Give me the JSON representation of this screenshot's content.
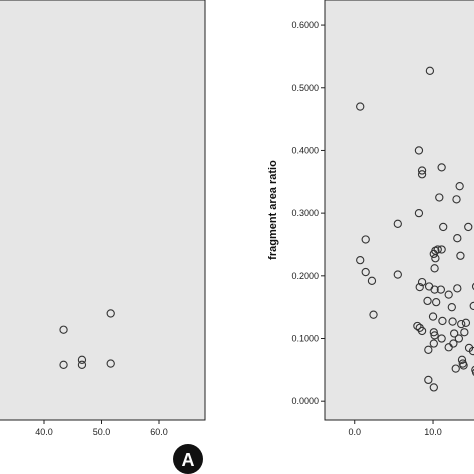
{
  "panel_badge": "A",
  "colors": {
    "plot_bg": "#e6e6e6",
    "marker": "#333333",
    "badge": "#111111"
  },
  "chart_data": [
    {
      "type": "scatter",
      "title": "",
      "xlabel": "",
      "ylabel": "",
      "xlim": [
        32,
        68
      ],
      "x_ticks": [
        "40.0",
        "50.0",
        "60.0"
      ],
      "x_tick_values": [
        40,
        50,
        60
      ],
      "points": [
        {
          "x": 43.4,
          "y": 0.114
        },
        {
          "x": 51.6,
          "y": 0.14
        },
        {
          "x": 43.4,
          "y": 0.058
        },
        {
          "x": 46.6,
          "y": 0.066
        },
        {
          "x": 46.6,
          "y": 0.058
        },
        {
          "x": 51.6,
          "y": 0.06
        }
      ],
      "ylim": [
        -0.03,
        0.64
      ],
      "grid": false,
      "legend": "none"
    },
    {
      "type": "scatter",
      "title": "",
      "xlabel": "",
      "ylabel": "fragment area ratio",
      "xlim": [
        -3.8,
        16
      ],
      "ylim": [
        -0.03,
        0.64
      ],
      "x_ticks": [
        "0.0",
        "10.0"
      ],
      "x_tick_values": [
        0,
        10
      ],
      "y_ticks": [
        "0.0000",
        "0.1000",
        "0.2000",
        "0.3000",
        "0.4000",
        "0.5000",
        "0.6000"
      ],
      "y_tick_values": [
        0,
        0.1,
        0.2,
        0.3,
        0.4,
        0.5,
        0.6
      ],
      "points": [
        {
          "x": 0.7,
          "y": 0.47
        },
        {
          "x": 9.6,
          "y": 0.527
        },
        {
          "x": 8.2,
          "y": 0.4
        },
        {
          "x": 8.6,
          "y": 0.368
        },
        {
          "x": 8.6,
          "y": 0.362
        },
        {
          "x": 11.1,
          "y": 0.373
        },
        {
          "x": 13.4,
          "y": 0.343
        },
        {
          "x": 10.8,
          "y": 0.325
        },
        {
          "x": 13.0,
          "y": 0.322
        },
        {
          "x": 8.2,
          "y": 0.3
        },
        {
          "x": 5.5,
          "y": 0.283
        },
        {
          "x": 11.3,
          "y": 0.278
        },
        {
          "x": 14.5,
          "y": 0.278
        },
        {
          "x": 1.4,
          "y": 0.258
        },
        {
          "x": 13.1,
          "y": 0.26
        },
        {
          "x": 10.3,
          "y": 0.24
        },
        {
          "x": 10.6,
          "y": 0.242
        },
        {
          "x": 11.1,
          "y": 0.242
        },
        {
          "x": 10.1,
          "y": 0.235
        },
        {
          "x": 10.3,
          "y": 0.228
        },
        {
          "x": 13.5,
          "y": 0.232
        },
        {
          "x": 0.7,
          "y": 0.225
        },
        {
          "x": 1.4,
          "y": 0.206
        },
        {
          "x": 2.2,
          "y": 0.192
        },
        {
          "x": 5.5,
          "y": 0.202
        },
        {
          "x": 10.2,
          "y": 0.212
        },
        {
          "x": 8.6,
          "y": 0.19
        },
        {
          "x": 8.3,
          "y": 0.182
        },
        {
          "x": 9.5,
          "y": 0.183
        },
        {
          "x": 10.2,
          "y": 0.178
        },
        {
          "x": 11.0,
          "y": 0.178
        },
        {
          "x": 12.0,
          "y": 0.17
        },
        {
          "x": 13.1,
          "y": 0.18
        },
        {
          "x": 15.5,
          "y": 0.183
        },
        {
          "x": 9.3,
          "y": 0.16
        },
        {
          "x": 10.4,
          "y": 0.158
        },
        {
          "x": 12.4,
          "y": 0.15
        },
        {
          "x": 15.2,
          "y": 0.152
        },
        {
          "x": 2.4,
          "y": 0.138
        },
        {
          "x": 10.0,
          "y": 0.135
        },
        {
          "x": 11.2,
          "y": 0.128
        },
        {
          "x": 12.5,
          "y": 0.127
        },
        {
          "x": 13.6,
          "y": 0.123
        },
        {
          "x": 14.2,
          "y": 0.125
        },
        {
          "x": 8.0,
          "y": 0.12
        },
        {
          "x": 8.3,
          "y": 0.117
        },
        {
          "x": 8.6,
          "y": 0.112
        },
        {
          "x": 10.1,
          "y": 0.11
        },
        {
          "x": 10.2,
          "y": 0.105
        },
        {
          "x": 12.7,
          "y": 0.108
        },
        {
          "x": 14.0,
          "y": 0.11
        },
        {
          "x": 11.1,
          "y": 0.1
        },
        {
          "x": 13.3,
          "y": 0.1
        },
        {
          "x": 10.1,
          "y": 0.092
        },
        {
          "x": 12.6,
          "y": 0.092
        },
        {
          "x": 14.6,
          "y": 0.085
        },
        {
          "x": 9.4,
          "y": 0.082
        },
        {
          "x": 12.0,
          "y": 0.086
        },
        {
          "x": 15.1,
          "y": 0.08
        },
        {
          "x": 13.7,
          "y": 0.066
        },
        {
          "x": 13.8,
          "y": 0.06
        },
        {
          "x": 13.9,
          "y": 0.057
        },
        {
          "x": 12.9,
          "y": 0.052
        },
        {
          "x": 15.4,
          "y": 0.05
        },
        {
          "x": 15.5,
          "y": 0.046
        },
        {
          "x": 9.4,
          "y": 0.034
        },
        {
          "x": 10.1,
          "y": 0.022
        }
      ],
      "grid": false,
      "legend": "none"
    }
  ]
}
